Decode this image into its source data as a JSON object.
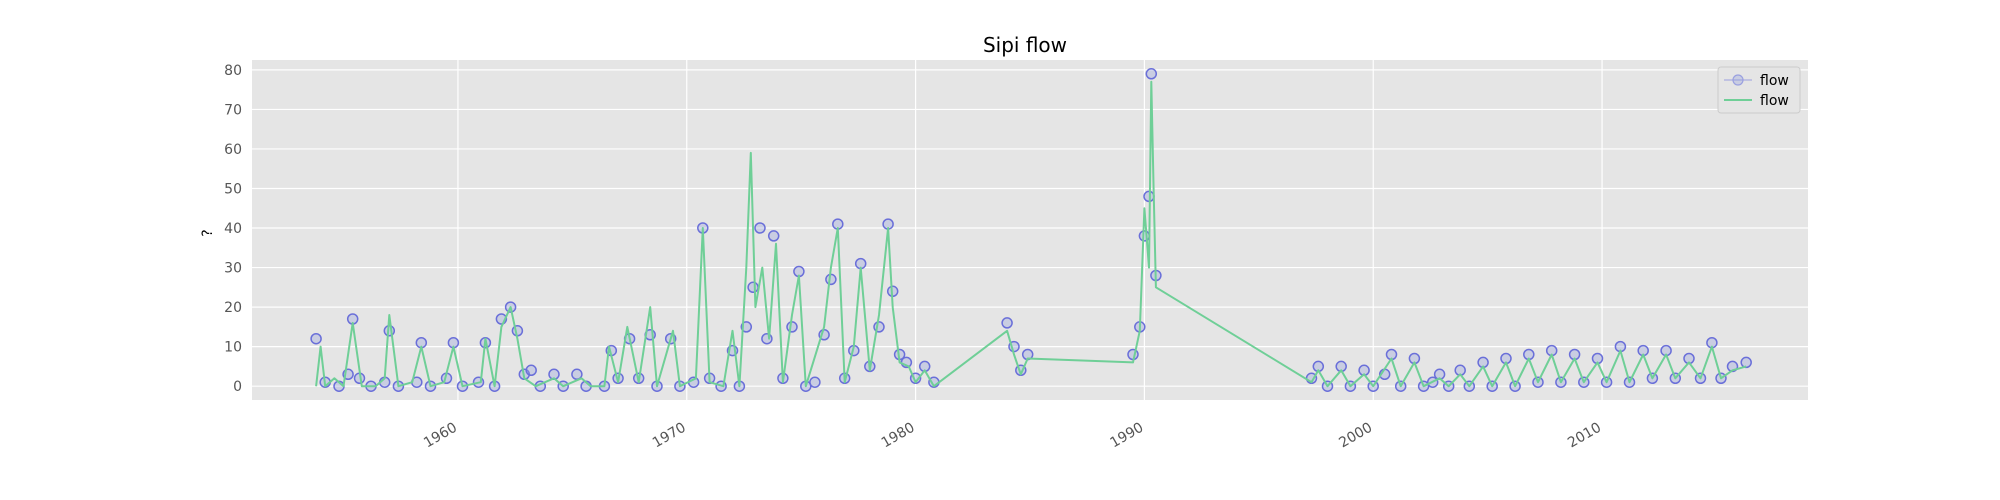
{
  "chart_data": {
    "type": "line",
    "title": "Sipi flow",
    "xlabel": "",
    "ylabel": "?",
    "xlim": [
      1951,
      2019
    ],
    "ylim": [
      -3.5,
      82.5
    ],
    "x_ticks": [
      1960,
      1970,
      1980,
      1990,
      2000,
      2010
    ],
    "x_tick_labels": [
      "1960",
      "1970",
      "1980",
      "1990",
      "2000",
      "2010"
    ],
    "y_ticks": [
      0,
      10,
      20,
      30,
      40,
      50,
      60,
      70,
      80
    ],
    "y_tick_labels": [
      "0",
      "10",
      "20",
      "30",
      "40",
      "50",
      "60",
      "70",
      "80"
    ],
    "grid": true,
    "legend": {
      "position": "top-right",
      "entries": [
        "flow",
        "flow"
      ]
    },
    "series": [
      {
        "name": "flow",
        "style": "markers",
        "color": "#6a6fd9",
        "points": [
          [
            1953.8,
            12
          ],
          [
            1954.2,
            1
          ],
          [
            1954.8,
            0
          ],
          [
            1955.2,
            3
          ],
          [
            1955.4,
            17
          ],
          [
            1955.7,
            2
          ],
          [
            1956.2,
            0
          ],
          [
            1956.8,
            1
          ],
          [
            1957.0,
            14
          ],
          [
            1957.4,
            0
          ],
          [
            1958.2,
            1
          ],
          [
            1958.4,
            11
          ],
          [
            1958.8,
            0
          ],
          [
            1959.5,
            2
          ],
          [
            1959.8,
            11
          ],
          [
            1960.2,
            0
          ],
          [
            1960.9,
            1
          ],
          [
            1961.2,
            11
          ],
          [
            1961.6,
            0
          ],
          [
            1961.9,
            17
          ],
          [
            1962.3,
            20
          ],
          [
            1962.6,
            14
          ],
          [
            1962.9,
            3
          ],
          [
            1963.2,
            4
          ],
          [
            1963.6,
            0
          ],
          [
            1964.2,
            3
          ],
          [
            1964.6,
            0
          ],
          [
            1965.2,
            3
          ],
          [
            1965.6,
            0
          ],
          [
            1966.4,
            0
          ],
          [
            1966.7,
            9
          ],
          [
            1967.0,
            2
          ],
          [
            1967.5,
            12
          ],
          [
            1967.9,
            2
          ],
          [
            1968.4,
            13
          ],
          [
            1968.7,
            0
          ],
          [
            1969.3,
            12
          ],
          [
            1969.7,
            0
          ],
          [
            1970.3,
            1
          ],
          [
            1970.7,
            40
          ],
          [
            1971.0,
            2
          ],
          [
            1971.5,
            0
          ],
          [
            1972.0,
            9
          ],
          [
            1972.3,
            0
          ],
          [
            1972.6,
            15
          ],
          [
            1972.9,
            25
          ],
          [
            1973.2,
            40
          ],
          [
            1973.5,
            12
          ],
          [
            1973.8,
            38
          ],
          [
            1974.2,
            2
          ],
          [
            1974.6,
            15
          ],
          [
            1974.9,
            29
          ],
          [
            1975.2,
            0
          ],
          [
            1975.6,
            1
          ],
          [
            1976.0,
            13
          ],
          [
            1976.3,
            27
          ],
          [
            1976.6,
            41
          ],
          [
            1976.9,
            2
          ],
          [
            1977.3,
            9
          ],
          [
            1977.6,
            31
          ],
          [
            1978.0,
            5
          ],
          [
            1978.4,
            15
          ],
          [
            1978.8,
            41
          ],
          [
            1979.0,
            24
          ],
          [
            1979.3,
            8
          ],
          [
            1979.6,
            6
          ],
          [
            1980.0,
            2
          ],
          [
            1980.4,
            5
          ],
          [
            1980.8,
            1
          ],
          [
            1984.0,
            16
          ],
          [
            1984.3,
            10
          ],
          [
            1984.6,
            4
          ],
          [
            1984.9,
            8
          ],
          [
            1989.5,
            8
          ],
          [
            1989.8,
            15
          ],
          [
            1990.0,
            38
          ],
          [
            1990.2,
            48
          ],
          [
            1990.3,
            79
          ],
          [
            1990.5,
            28
          ],
          [
            1997.3,
            2
          ],
          [
            1997.6,
            5
          ],
          [
            1998.0,
            0
          ],
          [
            1998.6,
            5
          ],
          [
            1999.0,
            0
          ],
          [
            1999.6,
            4
          ],
          [
            2000.0,
            0
          ],
          [
            2000.5,
            3
          ],
          [
            2000.8,
            8
          ],
          [
            2001.2,
            0
          ],
          [
            2001.8,
            7
          ],
          [
            2002.2,
            0
          ],
          [
            2002.6,
            1
          ],
          [
            2002.9,
            3
          ],
          [
            2003.3,
            0
          ],
          [
            2003.8,
            4
          ],
          [
            2004.2,
            0
          ],
          [
            2004.8,
            6
          ],
          [
            2005.2,
            0
          ],
          [
            2005.8,
            7
          ],
          [
            2006.2,
            0
          ],
          [
            2006.8,
            8
          ],
          [
            2007.2,
            1
          ],
          [
            2007.8,
            9
          ],
          [
            2008.2,
            1
          ],
          [
            2008.8,
            8
          ],
          [
            2009.2,
            1
          ],
          [
            2009.8,
            7
          ],
          [
            2010.2,
            1
          ],
          [
            2010.8,
            10
          ],
          [
            2011.2,
            1
          ],
          [
            2011.8,
            9
          ],
          [
            2012.2,
            2
          ],
          [
            2012.8,
            9
          ],
          [
            2013.2,
            2
          ],
          [
            2013.8,
            7
          ],
          [
            2014.3,
            2
          ],
          [
            2014.8,
            11
          ],
          [
            2015.2,
            2
          ],
          [
            2015.7,
            5
          ],
          [
            2016.3,
            6
          ]
        ]
      },
      {
        "name": "flow",
        "style": "line",
        "color": "#6fcf97",
        "points": [
          [
            1953.8,
            0
          ],
          [
            1954.0,
            10
          ],
          [
            1954.2,
            0
          ],
          [
            1954.6,
            2
          ],
          [
            1955.0,
            0
          ],
          [
            1955.4,
            16
          ],
          [
            1955.8,
            0
          ],
          [
            1956.4,
            0
          ],
          [
            1956.8,
            2
          ],
          [
            1957.0,
            18
          ],
          [
            1957.4,
            0
          ],
          [
            1958.0,
            1
          ],
          [
            1958.4,
            10
          ],
          [
            1958.8,
            0
          ],
          [
            1959.4,
            1
          ],
          [
            1959.8,
            10
          ],
          [
            1960.2,
            0
          ],
          [
            1961.0,
            1
          ],
          [
            1961.2,
            12
          ],
          [
            1961.6,
            0
          ],
          [
            1961.9,
            15
          ],
          [
            1962.3,
            20
          ],
          [
            1962.6,
            12
          ],
          [
            1962.9,
            2
          ],
          [
            1963.4,
            0
          ],
          [
            1964.2,
            2
          ],
          [
            1964.6,
            0
          ],
          [
            1965.4,
            2
          ],
          [
            1965.8,
            0
          ],
          [
            1966.4,
            0
          ],
          [
            1966.6,
            10
          ],
          [
            1967.0,
            1
          ],
          [
            1967.4,
            15
          ],
          [
            1967.9,
            1
          ],
          [
            1968.4,
            20
          ],
          [
            1968.7,
            0
          ],
          [
            1969.4,
            14
          ],
          [
            1969.7,
            0
          ],
          [
            1970.4,
            2
          ],
          [
            1970.7,
            40
          ],
          [
            1971.0,
            1
          ],
          [
            1971.6,
            0
          ],
          [
            1972.0,
            14
          ],
          [
            1972.3,
            0
          ],
          [
            1972.6,
            30
          ],
          [
            1972.8,
            59
          ],
          [
            1973.0,
            20
          ],
          [
            1973.3,
            30
          ],
          [
            1973.6,
            12
          ],
          [
            1973.9,
            36
          ],
          [
            1974.2,
            1
          ],
          [
            1974.6,
            18
          ],
          [
            1974.9,
            28
          ],
          [
            1975.2,
            0
          ],
          [
            1976.0,
            15
          ],
          [
            1976.3,
            30
          ],
          [
            1976.6,
            40
          ],
          [
            1976.9,
            1
          ],
          [
            1977.3,
            10
          ],
          [
            1977.6,
            30
          ],
          [
            1978.0,
            4
          ],
          [
            1978.4,
            18
          ],
          [
            1978.8,
            40
          ],
          [
            1979.0,
            20
          ],
          [
            1979.3,
            6
          ],
          [
            1979.7,
            5
          ],
          [
            1980.0,
            1
          ],
          [
            1980.4,
            4
          ],
          [
            1980.8,
            0
          ],
          [
            1984.0,
            14
          ],
          [
            1984.3,
            8
          ],
          [
            1984.6,
            3
          ],
          [
            1984.9,
            7
          ],
          [
            1989.5,
            6
          ],
          [
            1989.8,
            14
          ],
          [
            1990.0,
            45
          ],
          [
            1990.2,
            30
          ],
          [
            1990.3,
            77
          ],
          [
            1990.4,
            50
          ],
          [
            1990.5,
            25
          ],
          [
            1997.3,
            1
          ],
          [
            1997.6,
            4
          ],
          [
            1998.0,
            0
          ],
          [
            1998.6,
            4
          ],
          [
            1999.0,
            0
          ],
          [
            1999.6,
            3
          ],
          [
            2000.0,
            0
          ],
          [
            2000.8,
            7
          ],
          [
            2001.2,
            0
          ],
          [
            2001.8,
            6
          ],
          [
            2002.2,
            0
          ],
          [
            2002.9,
            2
          ],
          [
            2003.3,
            0
          ],
          [
            2003.8,
            3
          ],
          [
            2004.2,
            0
          ],
          [
            2004.8,
            5
          ],
          [
            2005.2,
            0
          ],
          [
            2005.8,
            6
          ],
          [
            2006.2,
            0
          ],
          [
            2006.8,
            7
          ],
          [
            2007.2,
            1
          ],
          [
            2007.8,
            8
          ],
          [
            2008.2,
            1
          ],
          [
            2008.8,
            7
          ],
          [
            2009.2,
            1
          ],
          [
            2009.8,
            6
          ],
          [
            2010.2,
            1
          ],
          [
            2010.8,
            9
          ],
          [
            2011.2,
            1
          ],
          [
            2011.8,
            8
          ],
          [
            2012.2,
            2
          ],
          [
            2012.8,
            8
          ],
          [
            2013.2,
            2
          ],
          [
            2013.8,
            6
          ],
          [
            2014.3,
            2
          ],
          [
            2014.8,
            10
          ],
          [
            2015.2,
            2
          ],
          [
            2015.7,
            4
          ],
          [
            2016.3,
            5
          ]
        ]
      }
    ]
  }
}
